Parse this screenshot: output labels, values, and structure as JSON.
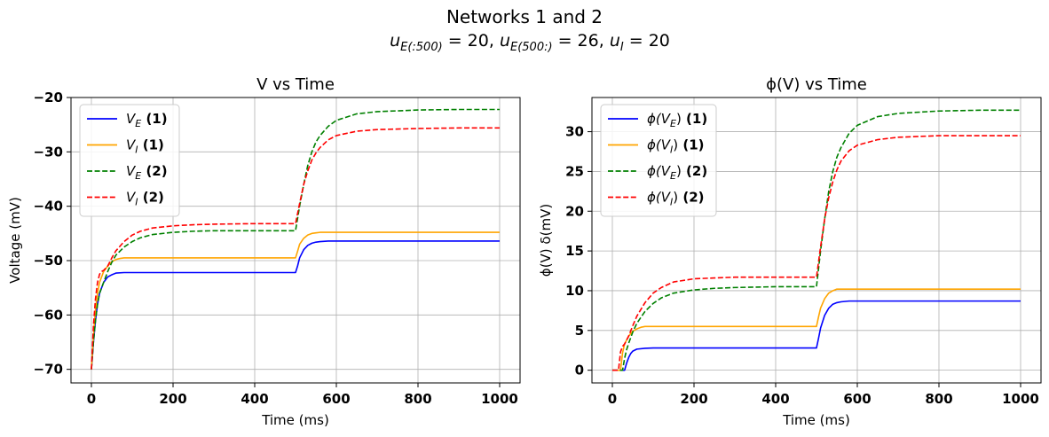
{
  "figure": {
    "title": "Networks 1 and 2",
    "subtitle": "uE(:500) = 20, uE(500:) = 26, uI = 20"
  },
  "chart_data": [
    {
      "type": "line",
      "title": "V vs Time",
      "xlabel": "Time (ms)",
      "ylabel": "Voltage (mV)",
      "xlim": [
        -50,
        1050
      ],
      "ylim": [
        -72.5,
        -20
      ],
      "xticks": [
        0,
        200,
        400,
        600,
        800,
        1000
      ],
      "yticks": [
        -70,
        -60,
        -50,
        -40,
        -30,
        -20
      ],
      "xtick_labels": [
        "0",
        "200",
        "400",
        "600",
        "800",
        "1000"
      ],
      "ytick_labels": [
        "−70",
        "−60",
        "−50",
        "−40",
        "−30",
        "−20"
      ],
      "grid": true,
      "legend_position": "top-left",
      "series": [
        {
          "name": "V_E (1)",
          "label_main": "V",
          "label_sub": "E",
          "label_bold": " (1)",
          "color": "#0000ff",
          "style": "solid",
          "x": [
            0,
            5,
            10,
            15,
            20,
            30,
            40,
            50,
            60,
            80,
            100,
            500,
            505,
            510,
            520,
            530,
            540,
            550,
            560,
            580,
            600,
            650,
            1000
          ],
          "y": [
            -70,
            -65,
            -61,
            -58,
            -56,
            -54,
            -53,
            -52.6,
            -52.3,
            -52.2,
            -52.2,
            -52.2,
            -51,
            -49.5,
            -48,
            -47.2,
            -46.8,
            -46.6,
            -46.5,
            -46.4,
            -46.4,
            -46.4,
            -46.4
          ]
        },
        {
          "name": "V_I (1)",
          "label_main": "V",
          "label_sub": "I",
          "label_bold": " (1)",
          "color": "#ffa500",
          "style": "solid",
          "x": [
            0,
            5,
            10,
            15,
            20,
            30,
            40,
            50,
            60,
            70,
            80,
            100,
            500,
            505,
            510,
            520,
            530,
            540,
            550,
            560,
            580,
            600,
            1000
          ],
          "y": [
            -70,
            -64,
            -59,
            -56,
            -54,
            -52,
            -51,
            -50.2,
            -49.8,
            -49.6,
            -49.5,
            -49.5,
            -49.5,
            -48.3,
            -47,
            -45.9,
            -45.3,
            -45,
            -44.9,
            -44.8,
            -44.8,
            -44.8,
            -44.8
          ]
        },
        {
          "name": "V_E (2)",
          "label_main": "V",
          "label_sub": "E",
          "label_bold": " (2)",
          "color": "#008000",
          "style": "dashed",
          "x": [
            0,
            5,
            10,
            15,
            20,
            30,
            40,
            50,
            60,
            80,
            100,
            120,
            150,
            200,
            250,
            300,
            400,
            500,
            510,
            520,
            530,
            540,
            550,
            560,
            580,
            600,
            650,
            700,
            800,
            900,
            1000
          ],
          "y": [
            -70,
            -65,
            -61,
            -58,
            -56,
            -54,
            -52,
            -50.3,
            -49,
            -47.5,
            -46.5,
            -45.8,
            -45.2,
            -44.8,
            -44.6,
            -44.5,
            -44.5,
            -44.5,
            -40,
            -36,
            -32.5,
            -30,
            -28.2,
            -27,
            -25.3,
            -24.2,
            -23,
            -22.6,
            -22.3,
            -22.2,
            -22.2
          ]
        },
        {
          "name": "V_I (2)",
          "label_main": "V",
          "label_sub": "I",
          "label_bold": " (2)",
          "color": "#ff0000",
          "style": "dashed",
          "x": [
            0,
            5,
            10,
            15,
            20,
            25,
            30,
            40,
            50,
            60,
            80,
            100,
            120,
            150,
            200,
            250,
            300,
            400,
            500,
            510,
            520,
            530,
            540,
            550,
            560,
            580,
            600,
            650,
            700,
            800,
            900,
            1000
          ],
          "y": [
            -70,
            -62,
            -57,
            -54,
            -52.5,
            -52,
            -51.8,
            -51,
            -49.5,
            -48.2,
            -46.5,
            -45.3,
            -44.6,
            -44,
            -43.6,
            -43.4,
            -43.3,
            -43.2,
            -43.2,
            -39.5,
            -36,
            -33.5,
            -31.5,
            -30.2,
            -29.2,
            -27.8,
            -27,
            -26.2,
            -25.9,
            -25.7,
            -25.6,
            -25.6
          ]
        }
      ]
    },
    {
      "type": "line",
      "title": "ϕ(V) vs Time",
      "xlabel": "Time (ms)",
      "ylabel": "ϕ(V) δ(mV)",
      "xlim": [
        -50,
        1050
      ],
      "ylim": [
        -1.6,
        34.3
      ],
      "xticks": [
        0,
        200,
        400,
        600,
        800,
        1000
      ],
      "yticks": [
        0,
        5,
        10,
        15,
        20,
        25,
        30
      ],
      "xtick_labels": [
        "0",
        "200",
        "400",
        "600",
        "800",
        "1000"
      ],
      "ytick_labels": [
        "0",
        "5",
        "10",
        "15",
        "20",
        "25",
        "30"
      ],
      "grid": true,
      "legend_position": "top-left",
      "series": [
        {
          "name": "ϕ(V_E) (1)",
          "label_main": "ϕ(V",
          "label_sub": "E",
          "label_end": ")",
          "label_bold": " (1)",
          "color": "#0000ff",
          "style": "solid",
          "x": [
            0,
            30,
            35,
            40,
            45,
            50,
            60,
            80,
            100,
            500,
            505,
            510,
            520,
            530,
            540,
            550,
            560,
            580,
            600,
            1000
          ],
          "y": [
            0,
            0,
            0.9,
            1.6,
            2.1,
            2.4,
            2.65,
            2.75,
            2.8,
            2.8,
            4,
            5.3,
            6.9,
            7.8,
            8.3,
            8.5,
            8.6,
            8.7,
            8.7,
            8.7
          ]
        },
        {
          "name": "ϕ(V_I) (1)",
          "label_main": "ϕ(V",
          "label_sub": "I",
          "label_end": ")",
          "label_bold": " (1)",
          "color": "#ffa500",
          "style": "solid",
          "x": [
            0,
            20,
            25,
            30,
            40,
            50,
            60,
            70,
            80,
            100,
            500,
            505,
            510,
            520,
            530,
            540,
            550,
            560,
            580,
            600,
            1000
          ],
          "y": [
            0,
            0,
            2.2,
            3.3,
            4.3,
            4.9,
            5.2,
            5.4,
            5.5,
            5.5,
            5.5,
            6.7,
            7.8,
            9,
            9.7,
            10,
            10.2,
            10.2,
            10.2,
            10.2,
            10.2
          ]
        },
        {
          "name": "ϕ(V_E) (2)",
          "label_main": "ϕ(V",
          "label_sub": "E",
          "label_end": ")",
          "label_bold": " (2)",
          "color": "#008000",
          "style": "dashed",
          "x": [
            0,
            25,
            30,
            35,
            40,
            50,
            60,
            80,
            100,
            120,
            150,
            200,
            250,
            300,
            400,
            500,
            510,
            520,
            530,
            540,
            550,
            560,
            580,
            600,
            650,
            700,
            800,
            900,
            1000
          ],
          "y": [
            0,
            0,
            1.5,
            2.6,
            3.4,
            4.8,
            5.9,
            7.4,
            8.4,
            9.1,
            9.7,
            10.1,
            10.3,
            10.4,
            10.5,
            10.5,
            15,
            19,
            22.5,
            25,
            26.8,
            28,
            29.8,
            30.8,
            31.9,
            32.3,
            32.6,
            32.7,
            32.7
          ]
        },
        {
          "name": "ϕ(V_I) (2)",
          "label_main": "ϕ(V",
          "label_sub": "I",
          "label_end": ")",
          "label_bold": " (2)",
          "color": "#ff0000",
          "style": "dashed",
          "x": [
            0,
            15,
            20,
            25,
            30,
            40,
            50,
            60,
            80,
            100,
            120,
            150,
            200,
            250,
            300,
            400,
            500,
            510,
            520,
            530,
            540,
            550,
            560,
            580,
            600,
            650,
            700,
            800,
            900,
            1000
          ],
          "y": [
            0,
            0,
            2.3,
            3,
            3.3,
            4.3,
            5.6,
            6.8,
            8.5,
            9.7,
            10.4,
            11.1,
            11.5,
            11.6,
            11.7,
            11.7,
            11.7,
            15.5,
            19,
            21.7,
            23.7,
            25.2,
            26.3,
            27.6,
            28.3,
            29,
            29.3,
            29.5,
            29.5,
            29.5
          ]
        }
      ]
    }
  ]
}
